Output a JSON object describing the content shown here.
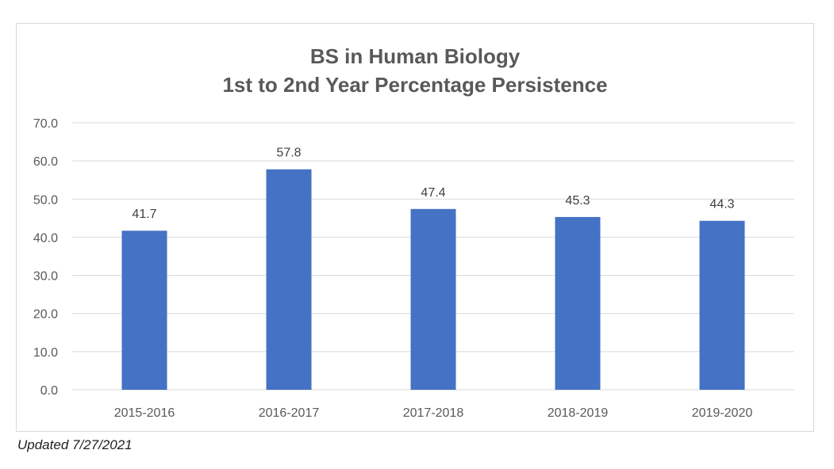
{
  "chart_data": {
    "type": "bar",
    "title": "BS in Human Biology",
    "subtitle": "1st to 2nd Year Percentage Persistence",
    "xlabel": "",
    "ylabel": "",
    "categories": [
      "2015-2016",
      "2016-2017",
      "2017-2018",
      "2018-2019",
      "2019-2020"
    ],
    "values": [
      41.7,
      57.8,
      47.4,
      45.3,
      44.3
    ],
    "value_labels": [
      "41.7",
      "57.8",
      "47.4",
      "45.3",
      "44.3"
    ],
    "ylim": [
      0,
      70
    ],
    "yticks": [
      "0.0",
      "10.0",
      "20.0",
      "30.0",
      "40.0",
      "50.0",
      "60.0",
      "70.0"
    ],
    "grid": true,
    "legend": "none",
    "bar_color": "#4472C4",
    "grid_color": "#d9d9d9"
  },
  "footnote": "Updated 7/27/2021"
}
